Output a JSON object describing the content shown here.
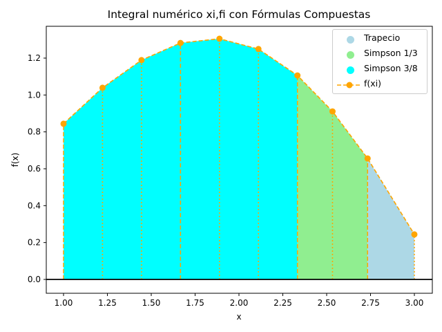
{
  "chart_data": {
    "type": "area",
    "title": "Integral numérico xi,fi con Fórmulas Compuestas",
    "xlabel": "x",
    "ylabel": "f(x)",
    "xlim": [
      0.9,
      3.1
    ],
    "ylim": [
      -0.06,
      1.37
    ],
    "x_ticks": [
      "1.00",
      "1.25",
      "1.50",
      "1.75",
      "2.00",
      "2.25",
      "2.50",
      "2.75",
      "3.00"
    ],
    "y_ticks": [
      "0.0",
      "0.2",
      "0.4",
      "0.6",
      "0.8",
      "1.0",
      "1.2"
    ],
    "points": {
      "x": [
        1.0,
        1.2222,
        1.4444,
        1.6667,
        1.8889,
        2.1111,
        2.3333,
        2.5333,
        2.7333,
        3.0
      ],
      "y": [
        0.844,
        1.039,
        1.189,
        1.282,
        1.305,
        1.249,
        1.106,
        0.911,
        0.656,
        0.244
      ]
    },
    "series": [
      {
        "name": "Trapecio",
        "color": "#add8e6",
        "x_range": [
          2.7333,
          3.0
        ]
      },
      {
        "name": "Simpson 1/3",
        "color": "#90ee90",
        "x_range": [
          2.3333,
          2.7333
        ]
      },
      {
        "name": "Simpson 3/8",
        "color": "#00ffff",
        "x_range": [
          1.0,
          2.3333
        ]
      },
      {
        "name": "f(xi)",
        "color": "#ffa500",
        "style": "dashed line with circle markers"
      }
    ],
    "legend_position": "upper right",
    "grid": false
  },
  "legend": {
    "items": [
      {
        "label": "Trapecio",
        "color": "#add8e6"
      },
      {
        "label": "Simpson 1/3",
        "color": "#90ee90"
      },
      {
        "label": "Simpson 3/8",
        "color": "#00ffff"
      },
      {
        "label": "f(xi)",
        "color": "#ffa500"
      }
    ]
  }
}
